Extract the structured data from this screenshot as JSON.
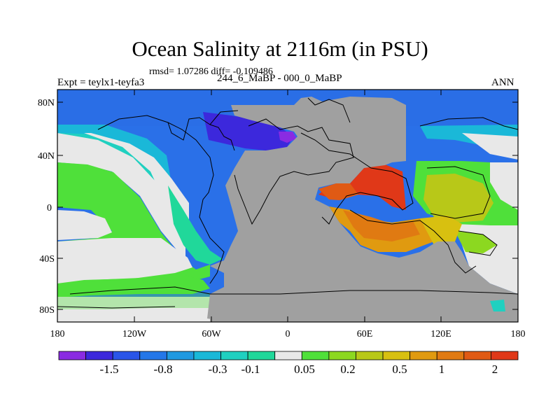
{
  "map": {
    "title": "Ocean Salinity at 2116m (in PSU)",
    "stats": "rmsd= 1.07286 diff= -0.109486",
    "experiment": "Expt = teylx1-teyfa3",
    "period": "244_6_MaBP - 000_0_MaBP",
    "season": "ANN",
    "y_ticks": [
      "80N",
      "40N",
      "0",
      "40S",
      "80S"
    ],
    "x_ticks": [
      "180",
      "120W",
      "60W",
      "0",
      "60E",
      "120E",
      "180"
    ],
    "land_color": "#a0a0a0"
  },
  "colorbar": {
    "colors": [
      "#8a2be2",
      "#3c28dc",
      "#2a55e8",
      "#2477e8",
      "#2099e0",
      "#1ab8d8",
      "#20d0c0",
      "#20d89a",
      "#e8e8e8",
      "#4fe03a",
      "#8cd820",
      "#b8c818",
      "#d8c010",
      "#e09a10",
      "#e07a12",
      "#e05a14",
      "#e03818"
    ],
    "labels": [
      "-1.5",
      "-0.8",
      "-0.3",
      "-0.1",
      "0.05",
      "0.2",
      "0.5",
      "1",
      "2"
    ]
  }
}
